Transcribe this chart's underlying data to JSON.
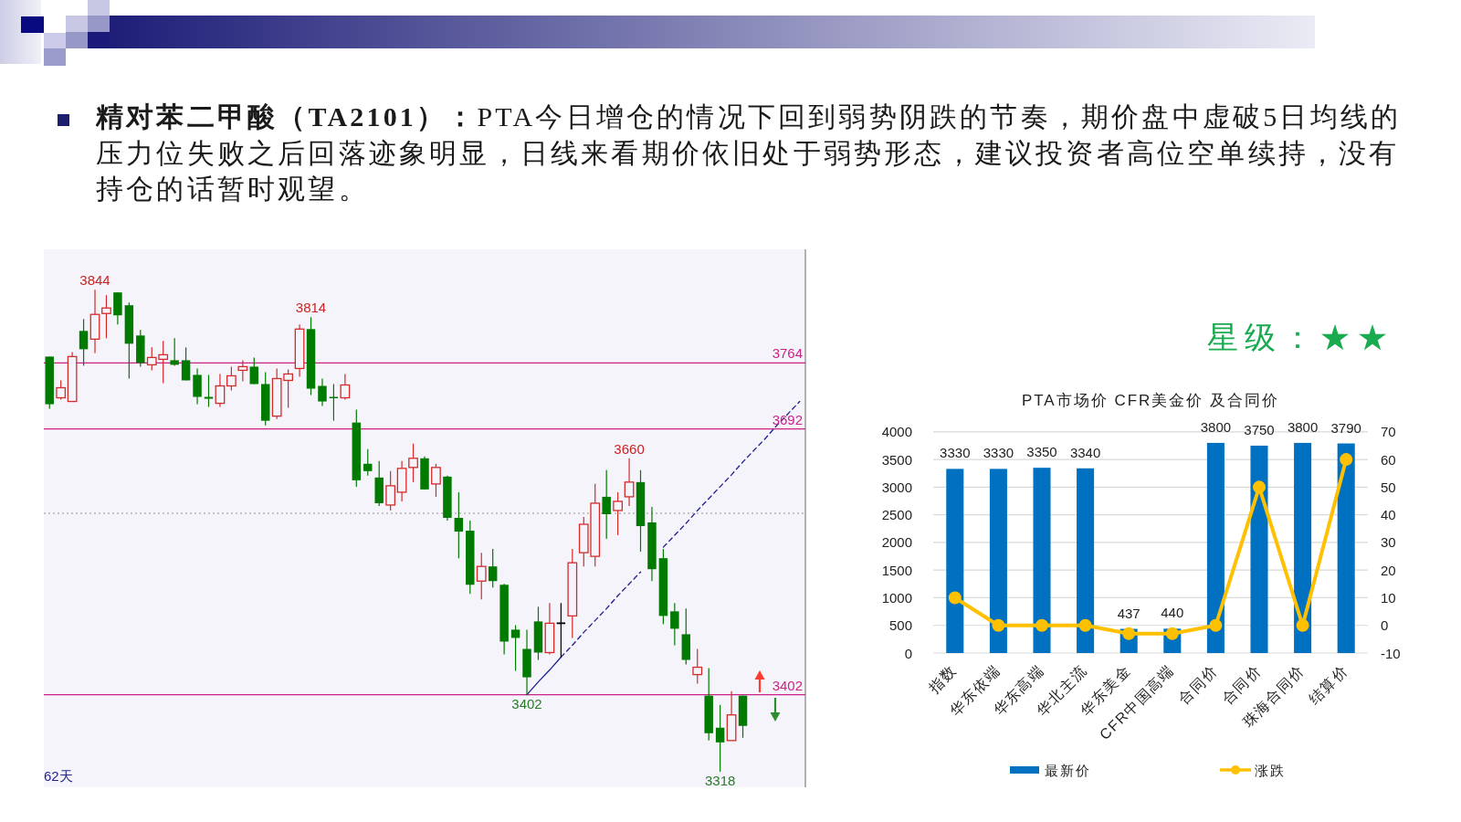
{
  "chart_data": [
    {
      "type": "candlestick",
      "title": "精对苯二甲酸（TA2101）：",
      "subtitle": "PTA今日增仓的情况下回到弱势阴跌的节奏，期价盘中虚破5日均线的压力位失败之后回落迹象明显，日线来看期价依旧处于弱势形态，建议投资者高位空单续持，没有持仓的话暂时观望。",
      "categories": [
        null,
        null,
        null,
        null,
        null,
        null,
        null,
        null,
        null,
        null,
        null,
        null,
        null,
        null,
        null,
        null,
        null,
        null,
        null,
        null,
        null,
        null,
        null,
        null,
        null,
        null,
        null,
        null,
        null,
        null,
        null,
        null,
        null,
        null,
        null,
        null,
        null,
        null,
        null,
        null,
        null,
        null,
        null,
        null,
        null,
        null,
        null,
        null,
        null,
        null,
        null,
        null,
        null,
        null,
        null,
        null,
        null,
        null,
        null,
        null,
        null,
        null,
        null,
        null,
        null,
        null,
        null
      ],
      "ohlc": [
        [
          3771,
          3771,
          3714,
          3719
        ],
        [
          3726,
          3745,
          3724,
          3737
        ],
        [
          3722,
          3776,
          3722,
          3771
        ],
        [
          3799,
          3812,
          3761,
          3779
        ],
        [
          3790,
          3844,
          3775,
          3817
        ],
        [
          3818,
          3838,
          3791,
          3824
        ],
        [
          3841,
          3841,
          3806,
          3816
        ],
        [
          3827,
          3830,
          3747,
          3785
        ],
        [
          3794,
          3800,
          3760,
          3764
        ],
        [
          3762,
          3781,
          3756,
          3770
        ],
        [
          3768,
          3788,
          3742,
          3773
        ],
        [
          3767,
          3791,
          3761,
          3762
        ],
        [
          3767,
          3781,
          3745,
          3745
        ],
        [
          3751,
          3758,
          3719,
          3727
        ],
        [
          3727,
          3751,
          3716,
          3725
        ],
        [
          3720,
          3752,
          3716,
          3739
        ],
        [
          3739,
          3760,
          3734,
          3750
        ],
        [
          3756,
          3767,
          3744,
          3760
        ],
        [
          3760,
          3770,
          3741,
          3741
        ],
        [
          3741,
          3754,
          3696,
          3701
        ],
        [
          3706,
          3758,
          3703,
          3747
        ],
        [
          3745,
          3757,
          3715,
          3752
        ],
        [
          3758,
          3806,
          3749,
          3801
        ],
        [
          3801,
          3814,
          3729,
          3736
        ],
        [
          3739,
          3747,
          3717,
          3722
        ],
        [
          3727,
          3741,
          3701,
          3726
        ],
        [
          3726,
          3752,
          3724,
          3740
        ],
        [
          3699,
          3713,
          3629,
          3636
        ],
        [
          3654,
          3670,
          3641,
          3646
        ],
        [
          3639,
          3657,
          3608,
          3611
        ],
        [
          3609,
          3646,
          3603,
          3630
        ],
        [
          3623,
          3657,
          3613,
          3649
        ],
        [
          3650,
          3676,
          3634,
          3660
        ],
        [
          3660,
          3662,
          3626,
          3626
        ],
        [
          3632,
          3654,
          3618,
          3650
        ],
        [
          3640,
          3641,
          3592,
          3595
        ],
        [
          3595,
          3623,
          3551,
          3580
        ],
        [
          3581,
          3592,
          3512,
          3522
        ],
        [
          3526,
          3557,
          3506,
          3542
        ],
        [
          3542,
          3561,
          3519,
          3526
        ],
        [
          3522,
          3523,
          3446,
          3460
        ],
        [
          3473,
          3478,
          3428,
          3464
        ],
        [
          3452,
          3473,
          3402,
          3421
        ],
        [
          3482,
          3498,
          3440,
          3448
        ],
        [
          3448,
          3502,
          3446,
          3480
        ],
        [
          3480,
          3502,
          3443,
          3480
        ],
        [
          3488,
          3561,
          3464,
          3546
        ],
        [
          3557,
          3596,
          3542,
          3588
        ],
        [
          3553,
          3632,
          3542,
          3611
        ],
        [
          3618,
          3647,
          3572,
          3599
        ],
        [
          3603,
          3623,
          3576,
          3613
        ],
        [
          3618,
          3660,
          3608,
          3634
        ],
        [
          3634,
          3647,
          3558,
          3586
        ],
        [
          3590,
          3607,
          3526,
          3539
        ],
        [
          3551,
          3561,
          3479,
          3488
        ],
        [
          3493,
          3502,
          3456,
          3474
        ],
        [
          3468,
          3496,
          3435,
          3440
        ],
        [
          3424,
          3452,
          3414,
          3432
        ],
        [
          3401,
          3431,
          3352,
          3360
        ],
        [
          3366,
          3391,
          3318,
          3350
        ],
        [
          3352,
          3406,
          3352,
          3380
        ],
        [
          3401,
          3401,
          3355,
          3368
        ],
        null,
        null,
        null,
        null,
        null
      ],
      "colors": [
        "#007a00",
        "#d42a2a",
        "#d42a2a",
        "#007a00",
        "#d42a2a",
        "#d42a2a",
        "#007a00",
        "#007a00",
        "#007a00",
        "#d42a2a",
        "#d42a2a",
        "#007a00",
        "#007a00",
        "#007a00",
        "#007a00",
        "#d42a2a",
        "#d42a2a",
        "#d42a2a",
        "#007a00",
        "#007a00",
        "#d42a2a",
        "#d42a2a",
        "#d42a2a",
        "#007a00",
        "#007a00",
        "#007a00",
        "#d42a2a",
        "#007a00",
        "#007a00",
        "#007a00",
        "#d42a2a",
        "#d42a2a",
        "#d42a2a",
        "#007a00",
        "#d42a2a",
        "#007a00",
        "#007a00",
        "#007a00",
        "#d42a2a",
        "#007a00",
        "#007a00",
        "#007a00",
        "#007a00",
        "#007a00",
        "#d42a2a",
        "#000000",
        "#d42a2a",
        "#d42a2a",
        "#d42a2a",
        "#007a00",
        "#d42a2a",
        "#d42a2a",
        "#007a00",
        "#007a00",
        "#007a00",
        "#007a00",
        "#007a00",
        "#d42a2a",
        "#007a00",
        "#007a00",
        "#d42a2a",
        "#007a00",
        null,
        null,
        null,
        null,
        null
      ],
      "ylim": [
        3301,
        3888
      ],
      "tick_labels": false,
      "series": [
        {
          "type": "line",
          "color": "#1f1f8f",
          "line_style": "solid",
          "values": [
            null,
            null,
            null,
            null,
            null,
            null,
            null,
            null,
            null,
            null,
            null,
            null,
            null,
            null,
            null,
            null,
            null,
            null,
            null,
            null,
            null,
            null,
            null,
            null,
            null,
            null,
            null,
            null,
            null,
            null,
            null,
            null,
            null,
            null,
            null,
            null,
            null,
            null,
            null,
            null,
            null,
            null,
            3402,
            3416,
            3429,
            3443,
            null,
            null,
            null,
            null,
            null,
            null,
            null,
            null,
            null,
            null,
            null,
            null,
            null,
            null,
            null,
            null,
            null,
            null,
            null,
            null,
            null
          ]
        },
        {
          "type": "line",
          "color": "#1f1f8f",
          "line_style": "dashed",
          "values": [
            null,
            null,
            null,
            null,
            null,
            null,
            null,
            null,
            null,
            null,
            null,
            null,
            null,
            null,
            null,
            null,
            null,
            null,
            null,
            null,
            null,
            null,
            null,
            null,
            null,
            null,
            null,
            null,
            null,
            null,
            null,
            null,
            null,
            null,
            null,
            null,
            null,
            null,
            null,
            null,
            null,
            null,
            null,
            null,
            null,
            3443,
            3456,
            3470,
            3483,
            3496,
            3510,
            3523,
            3536,
            null,
            3563,
            3576,
            3589,
            3603,
            3616,
            3629,
            3642,
            3656,
            3669,
            3682,
            3696,
            3709,
            3722
          ]
        }
      ],
      "ref_lines": [
        {
          "axis": "y",
          "value": 3764,
          "label": "3764",
          "color": "#cc2288"
        },
        {
          "axis": "y",
          "value": 3692,
          "label": "3692",
          "color": "#cc2288"
        },
        {
          "axis": "y",
          "value": 3402,
          "label": "3402",
          "color": "#cc2288"
        },
        {
          "axis": "y",
          "value": 3600,
          "color": "#b4b4b4",
          "line_style": "dotted"
        }
      ],
      "annotations": [
        {
          "text": "3844",
          "y": 3844
        },
        {
          "text": "3814",
          "y": 3814
        },
        {
          "text": "3660",
          "y": 3660
        },
        {
          "text": "3402",
          "y": 3402
        },
        {
          "text": "3318",
          "y": 3318
        },
        "62天"
      ]
    },
    {
      "type": "bar",
      "title": "PTA市场价 CFR美金价 及合同价",
      "categories": [
        "指数",
        "华东依端",
        "华东高端",
        "华北主流",
        "华东美金",
        "CFR中国高端",
        "合同价",
        "合同价",
        "珠海合同价",
        "结算价"
      ],
      "series": [
        {
          "name": "最新价",
          "color": "#0070c0",
          "values": [
            3330,
            3330,
            3350,
            3340,
            437,
            440,
            3800,
            3750,
            3800,
            3790
          ],
          "value_labels": [
            "3330",
            "3330",
            "3350",
            "3340",
            "437",
            "440",
            "3800",
            "3750",
            "3800",
            "3790"
          ]
        },
        {
          "name": "涨跌",
          "type": "line",
          "axis": "y2",
          "color": "#ffc000",
          "marker": "circle",
          "values": [
            10,
            0,
            0,
            0,
            -3,
            -3,
            0,
            50,
            0,
            60
          ]
        }
      ],
      "ylim": [
        0,
        4000
      ],
      "yticks": [
        0,
        500,
        1000,
        1500,
        2000,
        2500,
        3000,
        3500,
        4000
      ],
      "y2lim": [
        -10,
        70
      ],
      "y2ticks": [
        -10,
        0,
        10,
        20,
        30,
        40,
        50,
        60,
        70
      ],
      "grid": "y",
      "legend": "bottom",
      "annotations": [
        "星级：★★"
      ]
    }
  ]
}
